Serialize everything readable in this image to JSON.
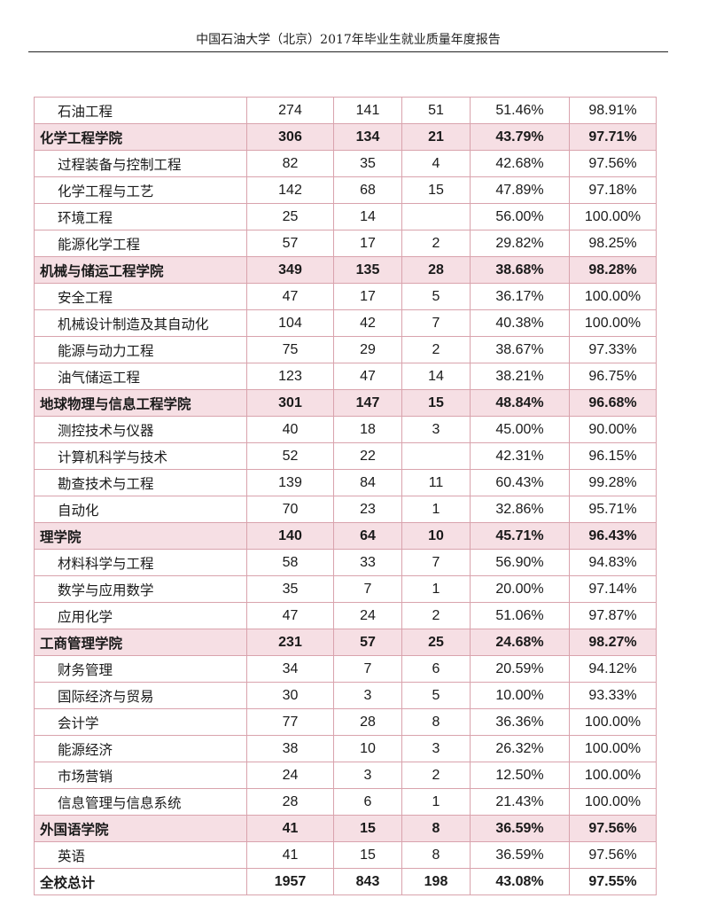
{
  "header": {
    "title": "中国石油大学（北京）2017年毕业生就业质量年度报告"
  },
  "rows": [
    {
      "type": "major",
      "name": "石油工程",
      "c1": "274",
      "c2": "141",
      "c3": "51",
      "c4": "51.46%",
      "c5": "98.91%"
    },
    {
      "type": "college",
      "name": "化学工程学院",
      "c1": "306",
      "c2": "134",
      "c3": "21",
      "c4": "43.79%",
      "c5": "97.71%"
    },
    {
      "type": "major",
      "name": "过程装备与控制工程",
      "c1": "82",
      "c2": "35",
      "c3": "4",
      "c4": "42.68%",
      "c5": "97.56%"
    },
    {
      "type": "major",
      "name": "化学工程与工艺",
      "c1": "142",
      "c2": "68",
      "c3": "15",
      "c4": "47.89%",
      "c5": "97.18%"
    },
    {
      "type": "major",
      "name": "环境工程",
      "c1": "25",
      "c2": "14",
      "c3": "",
      "c4": "56.00%",
      "c5": "100.00%"
    },
    {
      "type": "major",
      "name": "能源化学工程",
      "c1": "57",
      "c2": "17",
      "c3": "2",
      "c4": "29.82%",
      "c5": "98.25%"
    },
    {
      "type": "college",
      "name": "机械与储运工程学院",
      "c1": "349",
      "c2": "135",
      "c3": "28",
      "c4": "38.68%",
      "c5": "98.28%"
    },
    {
      "type": "major",
      "name": "安全工程",
      "c1": "47",
      "c2": "17",
      "c3": "5",
      "c4": "36.17%",
      "c5": "100.00%"
    },
    {
      "type": "major",
      "name": "机械设计制造及其自动化",
      "c1": "104",
      "c2": "42",
      "c3": "7",
      "c4": "40.38%",
      "c5": "100.00%"
    },
    {
      "type": "major",
      "name": "能源与动力工程",
      "c1": "75",
      "c2": "29",
      "c3": "2",
      "c4": "38.67%",
      "c5": "97.33%"
    },
    {
      "type": "major",
      "name": "油气储运工程",
      "c1": "123",
      "c2": "47",
      "c3": "14",
      "c4": "38.21%",
      "c5": "96.75%"
    },
    {
      "type": "college",
      "name": "地球物理与信息工程学院",
      "c1": "301",
      "c2": "147",
      "c3": "15",
      "c4": "48.84%",
      "c5": "96.68%"
    },
    {
      "type": "major",
      "name": "测控技术与仪器",
      "c1": "40",
      "c2": "18",
      "c3": "3",
      "c4": "45.00%",
      "c5": "90.00%"
    },
    {
      "type": "major",
      "name": "计算机科学与技术",
      "c1": "52",
      "c2": "22",
      "c3": "",
      "c4": "42.31%",
      "c5": "96.15%"
    },
    {
      "type": "major",
      "name": "勘查技术与工程",
      "c1": "139",
      "c2": "84",
      "c3": "11",
      "c4": "60.43%",
      "c5": "99.28%"
    },
    {
      "type": "major",
      "name": "自动化",
      "c1": "70",
      "c2": "23",
      "c3": "1",
      "c4": "32.86%",
      "c5": "95.71%"
    },
    {
      "type": "college",
      "name": "理学院",
      "c1": "140",
      "c2": "64",
      "c3": "10",
      "c4": "45.71%",
      "c5": "96.43%"
    },
    {
      "type": "major",
      "name": "材料科学与工程",
      "c1": "58",
      "c2": "33",
      "c3": "7",
      "c4": "56.90%",
      "c5": "94.83%"
    },
    {
      "type": "major",
      "name": "数学与应用数学",
      "c1": "35",
      "c2": "7",
      "c3": "1",
      "c4": "20.00%",
      "c5": "97.14%"
    },
    {
      "type": "major",
      "name": "应用化学",
      "c1": "47",
      "c2": "24",
      "c3": "2",
      "c4": "51.06%",
      "c5": "97.87%"
    },
    {
      "type": "college",
      "name": "工商管理学院",
      "c1": "231",
      "c2": "57",
      "c3": "25",
      "c4": "24.68%",
      "c5": "98.27%"
    },
    {
      "type": "major",
      "name": "财务管理",
      "c1": "34",
      "c2": "7",
      "c3": "6",
      "c4": "20.59%",
      "c5": "94.12%"
    },
    {
      "type": "major",
      "name": "国际经济与贸易",
      "c1": "30",
      "c2": "3",
      "c3": "5",
      "c4": "10.00%",
      "c5": "93.33%"
    },
    {
      "type": "major",
      "name": "会计学",
      "c1": "77",
      "c2": "28",
      "c3": "8",
      "c4": "36.36%",
      "c5": "100.00%"
    },
    {
      "type": "major",
      "name": "能源经济",
      "c1": "38",
      "c2": "10",
      "c3": "3",
      "c4": "26.32%",
      "c5": "100.00%"
    },
    {
      "type": "major",
      "name": "市场营销",
      "c1": "24",
      "c2": "3",
      "c3": "2",
      "c4": "12.50%",
      "c5": "100.00%"
    },
    {
      "type": "major",
      "name": "信息管理与信息系统",
      "c1": "28",
      "c2": "6",
      "c3": "1",
      "c4": "21.43%",
      "c5": "100.00%"
    },
    {
      "type": "college",
      "name": "外国语学院",
      "c1": "41",
      "c2": "15",
      "c3": "8",
      "c4": "36.59%",
      "c5": "97.56%"
    },
    {
      "type": "major",
      "name": "英语",
      "c1": "41",
      "c2": "15",
      "c3": "8",
      "c4": "36.59%",
      "c5": "97.56%"
    },
    {
      "type": "total",
      "name": "全校总计",
      "c1": "1957",
      "c2": "843",
      "c3": "198",
      "c4": "43.08%",
      "c5": "97.55%"
    }
  ]
}
